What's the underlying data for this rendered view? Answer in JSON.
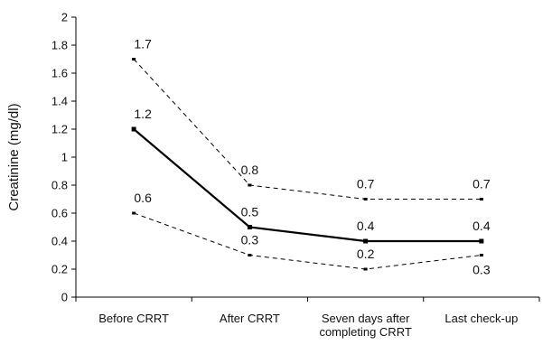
{
  "chart_data": {
    "type": "line",
    "title": "",
    "xlabel": "",
    "ylabel": "Creatinine (mg/dl)",
    "ylim": [
      0,
      2
    ],
    "yticks": [
      "0",
      "0.2",
      "0.4",
      "0.6",
      "0.8",
      "1",
      "1.2",
      "1.4",
      "1.6",
      "1.8",
      "2"
    ],
    "categories": [
      [
        "Before CRRT"
      ],
      [
        "After CRRT"
      ],
      [
        "Seven days  after",
        "completing CRRT"
      ],
      [
        "Last check-up"
      ]
    ],
    "grid": false,
    "legend": "none",
    "series": [
      {
        "style": "dashed",
        "values": [
          1.7,
          0.8,
          0.7,
          0.7
        ],
        "labels": [
          "1.7",
          "0.8",
          "0.7",
          "0.7"
        ],
        "label_position": "above"
      },
      {
        "style": "solid",
        "values": [
          1.2,
          0.5,
          0.4,
          0.4
        ],
        "labels": [
          "1.2",
          "0.5",
          "0.4",
          "0.4"
        ],
        "label_position": "above"
      },
      {
        "style": "dashed",
        "values": [
          0.6,
          0.3,
          0.2,
          0.3
        ],
        "labels": [
          "0.6",
          "0.3",
          "0.2",
          "0.3"
        ],
        "label_position": [
          "above",
          "above",
          "above",
          "below"
        ]
      }
    ],
    "colors": {
      "line": "#000000",
      "axis": "#000000",
      "background": "#ffffff"
    }
  }
}
